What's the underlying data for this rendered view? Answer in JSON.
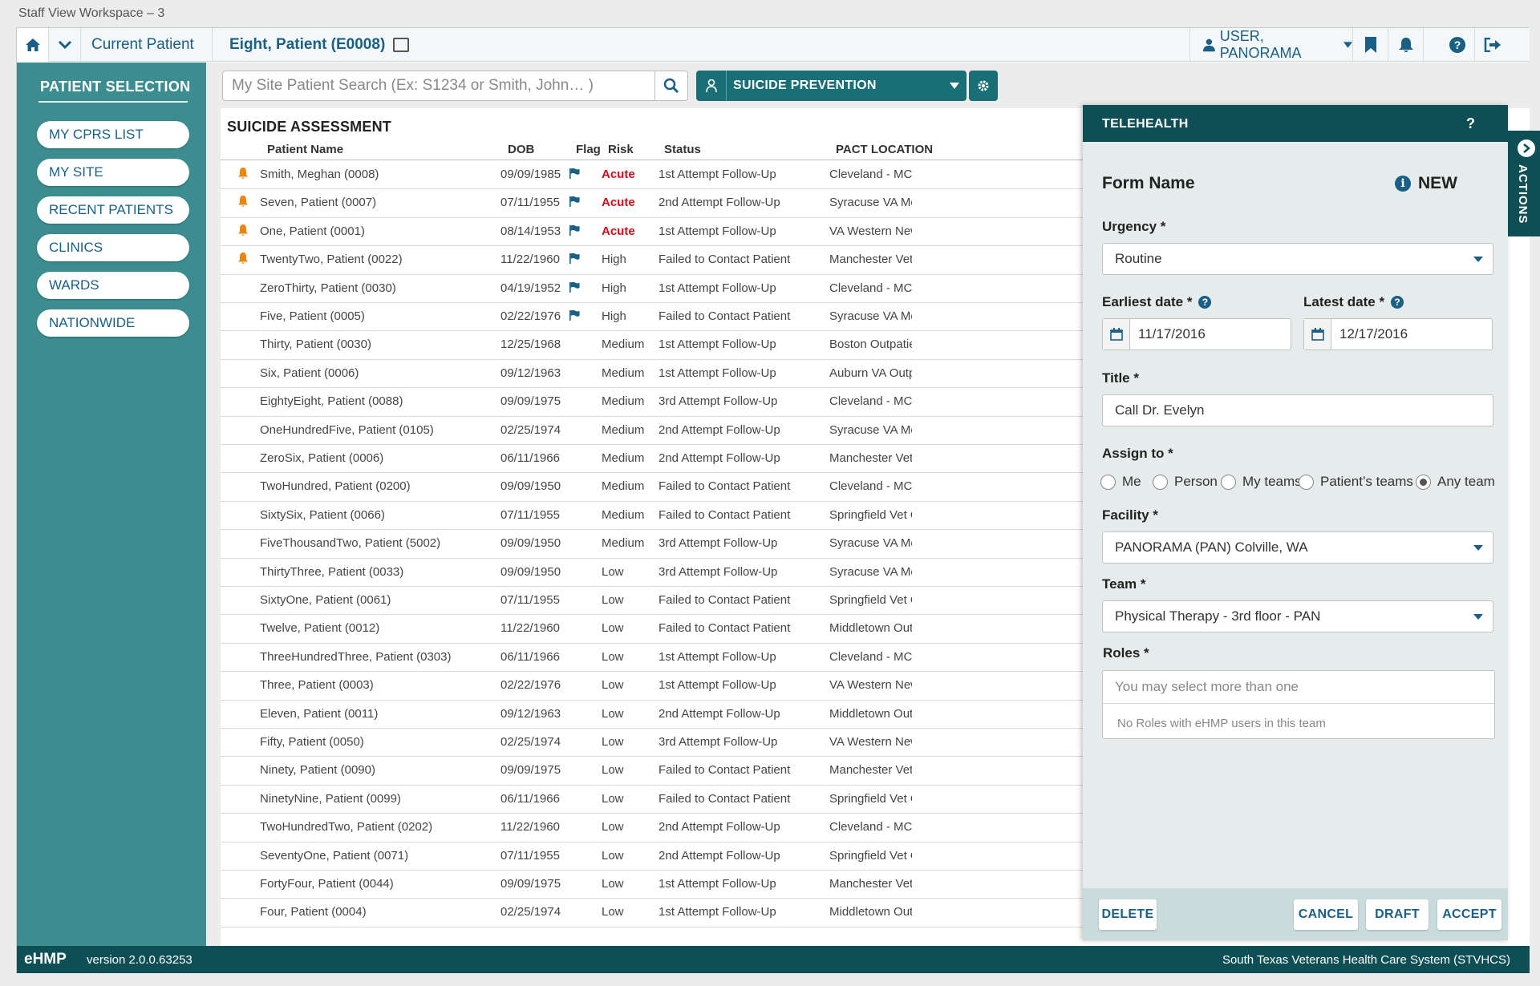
{
  "window_title": "Staff View Workspace – 3",
  "topnav": {
    "current_patient": "Current Patient",
    "patient_name": "Eight, Patient (E0008)",
    "user": "USER, PANORAMA"
  },
  "sidebar": {
    "title": "PATIENT SELECTION",
    "items": [
      {
        "label": "MY CPRS LIST"
      },
      {
        "label": "MY SITE"
      },
      {
        "label": "RECENT PATIENTS"
      },
      {
        "label": "CLINICS"
      },
      {
        "label": "WARDS"
      },
      {
        "label": "NATIONWIDE"
      }
    ]
  },
  "search": {
    "placeholder": "My Site Patient Search (Ex: S1234 or Smith, John… )"
  },
  "workspace_select": {
    "label": "SUICIDE PREVENTION"
  },
  "assessment": {
    "title": "SUICIDE ASSESSMENT",
    "columns": [
      "Patient Name",
      "DOB",
      "Flag",
      "Risk",
      "Status",
      "PACT LOCATION"
    ],
    "rows": [
      {
        "alert": true,
        "name": "Smith, Meghan (0008)",
        "dob": "09/09/1985",
        "flag": true,
        "risk": "Acute",
        "status": "1st Attempt Follow-Up",
        "location": "Cleveland - MC Gol"
      },
      {
        "alert": true,
        "name": "Seven, Patient (0007)",
        "dob": "07/11/1955",
        "flag": true,
        "risk": "Acute",
        "status": "2nd Attempt Follow-Up",
        "location": "Syracuse VA Medic"
      },
      {
        "alert": true,
        "name": "One, Patient (0001)",
        "dob": "08/14/1953",
        "flag": true,
        "risk": "Acute",
        "status": "1st Attempt Follow-Up",
        "location": "VA Western New Yo"
      },
      {
        "alert": true,
        "name": "TwentyTwo, Patient (0022)",
        "dob": "11/22/1960",
        "flag": true,
        "risk": "High",
        "status": "Failed to Contact Patient",
        "location": "Manchester Vet Cen"
      },
      {
        "alert": false,
        "name": "ZeroThirty, Patient (0030)",
        "dob": "04/19/1952",
        "flag": true,
        "risk": "High",
        "status": "1st Attempt Follow-Up",
        "location": "Cleveland - MC Blu"
      },
      {
        "alert": false,
        "name": "Five, Patient (0005)",
        "dob": "02/22/1976",
        "flag": true,
        "risk": "High",
        "status": "Failed to Contact Patient",
        "location": "Syracuse VA Medic"
      },
      {
        "alert": false,
        "name": "Thirty, Patient (0030)",
        "dob": "12/25/1968",
        "flag": false,
        "risk": "Medium",
        "status": "1st Attempt Follow-Up",
        "location": "Boston Outpatient"
      },
      {
        "alert": false,
        "name": "Six, Patient (0006)",
        "dob": "09/12/1963",
        "flag": false,
        "risk": "Medium",
        "status": "1st Attempt Follow-Up",
        "location": "Auburn VA Outpati"
      },
      {
        "alert": false,
        "name": "EightyEight, Patient (0088)",
        "dob": "09/09/1975",
        "flag": false,
        "risk": "Medium",
        "status": "3rd Attempt Follow-Up",
        "location": "Cleveland - MC Gol"
      },
      {
        "alert": false,
        "name": "OneHundredFive, Patient (0105)",
        "dob": "02/25/1974",
        "flag": false,
        "risk": "Medium",
        "status": "2nd Attempt Follow-Up",
        "location": "Syracuse VA Medic"
      },
      {
        "alert": false,
        "name": "ZeroSix, Patient (0006)",
        "dob": "06/11/1966",
        "flag": false,
        "risk": "Medium",
        "status": "2nd Attempt Follow-Up",
        "location": "Manchester Vet Cen"
      },
      {
        "alert": false,
        "name": "TwoHundred, Patient (0200)",
        "dob": "09/09/1950",
        "flag": false,
        "risk": "Medium",
        "status": "Failed to Contact Patient",
        "location": "Cleveland - MC Gol"
      },
      {
        "alert": false,
        "name": "SixtySix, Patient (0066)",
        "dob": "07/11/1955",
        "flag": false,
        "risk": "Medium",
        "status": "Failed to Contact Patient",
        "location": "Springfield Vet Cen"
      },
      {
        "alert": false,
        "name": "FiveThousandTwo, Patient (5002)",
        "dob": "09/09/1950",
        "flag": false,
        "risk": "Medium",
        "status": "3rd Attempt Follow-Up",
        "location": "Syracuse VA Medic"
      },
      {
        "alert": false,
        "name": "ThirtyThree, Patient (0033)",
        "dob": "09/09/1950",
        "flag": false,
        "risk": "Low",
        "status": "3rd Attempt Follow-Up",
        "location": "Syracuse VA Medic"
      },
      {
        "alert": false,
        "name": "SixtyOne, Patient (0061)",
        "dob": "07/11/1955",
        "flag": false,
        "risk": "Low",
        "status": "Failed to Contact Patient",
        "location": "Springfield Vet Cen"
      },
      {
        "alert": false,
        "name": "Twelve, Patient (0012)",
        "dob": "11/22/1960",
        "flag": false,
        "risk": "Low",
        "status": "Failed to Contact Patient",
        "location": "Middletown Outpa"
      },
      {
        "alert": false,
        "name": "ThreeHundredThree, Patient (0303)",
        "dob": "06/11/1966",
        "flag": false,
        "risk": "Low",
        "status": "1st Attempt Follow-Up",
        "location": "Cleveland - MC Blu"
      },
      {
        "alert": false,
        "name": "Three, Patient (0003)",
        "dob": "02/22/1976",
        "flag": false,
        "risk": "Low",
        "status": "1st Attempt Follow-Up",
        "location": "VA Western New Yo"
      },
      {
        "alert": false,
        "name": "Eleven, Patient (0011)",
        "dob": "09/12/1963",
        "flag": false,
        "risk": "Low",
        "status": "2nd Attempt Follow-Up",
        "location": "Middletown Outpa"
      },
      {
        "alert": false,
        "name": "Fifty, Patient (0050)",
        "dob": "02/25/1974",
        "flag": false,
        "risk": "Low",
        "status": "3rd Attempt Follow-Up",
        "location": "VA Western New Yo"
      },
      {
        "alert": false,
        "name": "Ninety, Patient (0090)",
        "dob": "09/09/1975",
        "flag": false,
        "risk": "Low",
        "status": "Failed to Contact Patient",
        "location": "Manchester Vet Cen"
      },
      {
        "alert": false,
        "name": "NinetyNine, Patient (0099)",
        "dob": "06/11/1966",
        "flag": false,
        "risk": "Low",
        "status": "Failed to Contact Patient",
        "location": "Springfield Vet Cen"
      },
      {
        "alert": false,
        "name": "TwoHundredTwo, Patient (0202)",
        "dob": "11/22/1960",
        "flag": false,
        "risk": "Low",
        "status": "2nd Attempt Follow-Up",
        "location": "Cleveland - MC Blu"
      },
      {
        "alert": false,
        "name": "SeventyOne, Patient (0071)",
        "dob": "07/11/1955",
        "flag": false,
        "risk": "Low",
        "status": "2nd Attempt Follow-Up",
        "location": "Springfield Vet Cen"
      },
      {
        "alert": false,
        "name": "FortyFour, Patient (0044)",
        "dob": "09/09/1975",
        "flag": false,
        "risk": "Low",
        "status": "1st Attempt Follow-Up",
        "location": "Manchester Vet Cen"
      },
      {
        "alert": false,
        "name": "Four, Patient (0004)",
        "dob": "02/25/1974",
        "flag": false,
        "risk": "Low",
        "status": "1st Attempt Follow-Up",
        "location": "Middletown Outpa"
      }
    ]
  },
  "telehealth": {
    "title": "TELEHEALTH",
    "help": "?",
    "form_name": "Form Name",
    "status": "NEW",
    "urgency_label": "Urgency *",
    "urgency_value": "Routine",
    "earliest_label": "Earliest date *",
    "earliest_value": "11/17/2016",
    "latest_label": "Latest date *",
    "latest_value": "12/17/2016",
    "title_label": "Title *",
    "title_value": "Call Dr. Evelyn",
    "assign_label": "Assign to *",
    "assign_options": [
      "Me",
      "Person",
      "My teams",
      "Patient’s teams",
      "Any team"
    ],
    "assign_selected": "Any team",
    "facility_label": "Facility *",
    "facility_value": "PANORAMA (PAN) Colville, WA",
    "team_label": "Team *",
    "team_value": "Physical Therapy - 3rd floor - PAN",
    "roles_label": "Roles *",
    "roles_placeholder": "You may select more than one",
    "roles_empty": "No Roles with eHMP users in this team",
    "buttons": {
      "delete": "DELETE",
      "cancel": "CANCEL",
      "draft": "DRAFT",
      "accept": "ACCEPT"
    }
  },
  "actions_tab": "ACTIONS",
  "footer": {
    "brand": "eHMP",
    "version": "version 2.0.0.63253",
    "org": "South Texas Veterans Health Care System (STVHCS)"
  },
  "colors": {
    "teal_sidebar": "#3b8d90",
    "dark_teal": "#0e4f55",
    "link_blue": "#1a5f85",
    "acute_red": "#d1101a",
    "alert_orange": "#e8870e"
  }
}
